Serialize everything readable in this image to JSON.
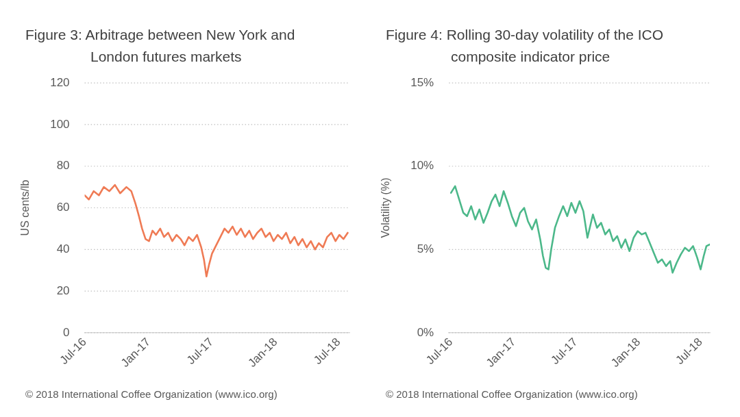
{
  "chart_data": [
    {
      "type": "line",
      "title": "Figure 3: Arbitrage between New York and London futures markets",
      "ylabel": "US cents/lb",
      "x": [
        "2016-07-01",
        "2016-07-13",
        "2016-07-27",
        "2016-08-11",
        "2016-08-25",
        "2016-09-10",
        "2016-09-26",
        "2016-10-11",
        "2016-10-29",
        "2016-11-12",
        "2016-11-24",
        "2016-12-04",
        "2016-12-13",
        "2016-12-23",
        "2017-01-02",
        "2017-01-12",
        "2017-01-22",
        "2017-02-03",
        "2017-02-14",
        "2017-02-26",
        "2017-03-10",
        "2017-03-22",
        "2017-04-03",
        "2017-04-14",
        "2017-04-26",
        "2017-05-08",
        "2017-05-20",
        "2017-06-01",
        "2017-06-09",
        "2017-06-16",
        "2017-06-24",
        "2017-07-02",
        "2017-07-14",
        "2017-07-26",
        "2017-08-07",
        "2017-08-18",
        "2017-08-30",
        "2017-09-11",
        "2017-09-23",
        "2017-10-05",
        "2017-10-17",
        "2017-10-28",
        "2017-11-09",
        "2017-11-21",
        "2017-12-03",
        "2017-12-15",
        "2017-12-26",
        "2018-01-07",
        "2018-01-19",
        "2018-01-31",
        "2018-02-12",
        "2018-02-24",
        "2018-03-07",
        "2018-03-19",
        "2018-03-31",
        "2018-04-12",
        "2018-04-24",
        "2018-05-05",
        "2018-05-17",
        "2018-05-29",
        "2018-06-10",
        "2018-06-22",
        "2018-07-03",
        "2018-07-15",
        "2018-07-27"
      ],
      "series": [
        {
          "color": "#ef7b55",
          "values": [
            66,
            64,
            68,
            66,
            70,
            68,
            71,
            67,
            70,
            68,
            62,
            56,
            50,
            45,
            44,
            49,
            47,
            50,
            46,
            48,
            44,
            47,
            45,
            42,
            46,
            44,
            47,
            41,
            35,
            27,
            33,
            38,
            42,
            46,
            50,
            48,
            51,
            47,
            50,
            46,
            49,
            45,
            48,
            50,
            46,
            48,
            44,
            47,
            45,
            48,
            43,
            46,
            42,
            45,
            41,
            44,
            40,
            43,
            41,
            46,
            48,
            44,
            47,
            45,
            48
          ]
        }
      ],
      "xlim": [
        "2016-07-01",
        "2018-08-01"
      ],
      "xticks": [
        {
          "value": "2016-07",
          "label": "Jul-16"
        },
        {
          "value": "2017-01",
          "label": "Jan-17"
        },
        {
          "value": "2017-07",
          "label": "Jul-17"
        },
        {
          "value": "2018-01",
          "label": "Jan-18"
        },
        {
          "value": "2018-07",
          "label": "Jul-18"
        }
      ],
      "ylim": [
        0,
        120
      ],
      "yticks": [
        0,
        20,
        40,
        60,
        80,
        100,
        120
      ],
      "grid": "y",
      "annotations": [
        "© 2018 International Coffee Organization (www.ico.org)"
      ]
    },
    {
      "type": "line",
      "title": "Figure 4: Rolling 30-day volatility of the ICO composite indicator price",
      "ylabel": "Volatility (%)",
      "x": [
        "2016-07-01",
        "2016-07-13",
        "2016-07-25",
        "2016-08-06",
        "2016-08-17",
        "2016-08-29",
        "2016-09-10",
        "2016-09-22",
        "2016-10-04",
        "2016-10-16",
        "2016-10-28",
        "2016-11-08",
        "2016-11-20",
        "2016-12-02",
        "2016-12-14",
        "2016-12-26",
        "2017-01-07",
        "2017-01-19",
        "2017-01-31",
        "2017-02-11",
        "2017-02-23",
        "2017-03-07",
        "2017-03-19",
        "2017-03-27",
        "2017-04-04",
        "2017-04-12",
        "2017-04-20",
        "2017-05-01",
        "2017-05-13",
        "2017-05-25",
        "2017-06-06",
        "2017-06-18",
        "2017-06-30",
        "2017-07-12",
        "2017-07-23",
        "2017-08-04",
        "2017-08-12",
        "2017-08-20",
        "2017-09-01",
        "2017-09-13",
        "2017-09-25",
        "2017-10-07",
        "2017-10-18",
        "2017-10-30",
        "2017-11-11",
        "2017-11-23",
        "2017-12-05",
        "2017-12-17",
        "2017-12-29",
        "2018-01-10",
        "2018-01-21",
        "2018-02-02",
        "2018-02-14",
        "2018-02-26",
        "2018-03-10",
        "2018-03-22",
        "2018-04-03",
        "2018-04-10",
        "2018-04-22",
        "2018-05-04",
        "2018-05-16",
        "2018-05-28",
        "2018-06-09",
        "2018-06-21",
        "2018-07-01",
        "2018-07-10",
        "2018-07-18",
        "2018-07-28"
      ],
      "series": [
        {
          "color": "#4cb88a",
          "values": [
            8.4,
            8.8,
            8.0,
            7.2,
            7.0,
            7.6,
            6.8,
            7.4,
            6.6,
            7.2,
            7.9,
            8.3,
            7.6,
            8.5,
            7.8,
            7.0,
            6.4,
            7.2,
            7.5,
            6.7,
            6.2,
            6.8,
            5.6,
            4.6,
            3.9,
            3.8,
            5.0,
            6.3,
            7.0,
            7.6,
            7.0,
            7.8,
            7.2,
            7.9,
            7.3,
            5.7,
            6.4,
            7.1,
            6.3,
            6.6,
            5.9,
            6.2,
            5.5,
            5.8,
            5.1,
            5.6,
            4.9,
            5.7,
            6.1,
            5.9,
            6.0,
            5.4,
            4.8,
            4.2,
            4.4,
            4.0,
            4.3,
            3.6,
            4.2,
            4.7,
            5.1,
            4.9,
            5.2,
            4.5,
            3.8,
            4.6,
            5.2,
            5.3
          ]
        }
      ],
      "xlim": [
        "2016-06-25",
        "2018-07-28"
      ],
      "xticks": [
        {
          "value": "2016-07",
          "label": "Jul-16"
        },
        {
          "value": "2017-01",
          "label": "Jan-17"
        },
        {
          "value": "2017-07",
          "label": "Jul-17"
        },
        {
          "value": "2018-01",
          "label": "Jan-18"
        },
        {
          "value": "2018-07",
          "label": "Jul-18"
        }
      ],
      "ylim": [
        0,
        15
      ],
      "yticks": [
        {
          "value": 0,
          "label": "0%"
        },
        {
          "value": 5,
          "label": "5%"
        },
        {
          "value": 10,
          "label": "10%"
        },
        {
          "value": 15,
          "label": "15%"
        }
      ],
      "grid": "y",
      "annotations": [
        "© 2018 International Coffee Organization (www.ico.org)"
      ]
    }
  ]
}
